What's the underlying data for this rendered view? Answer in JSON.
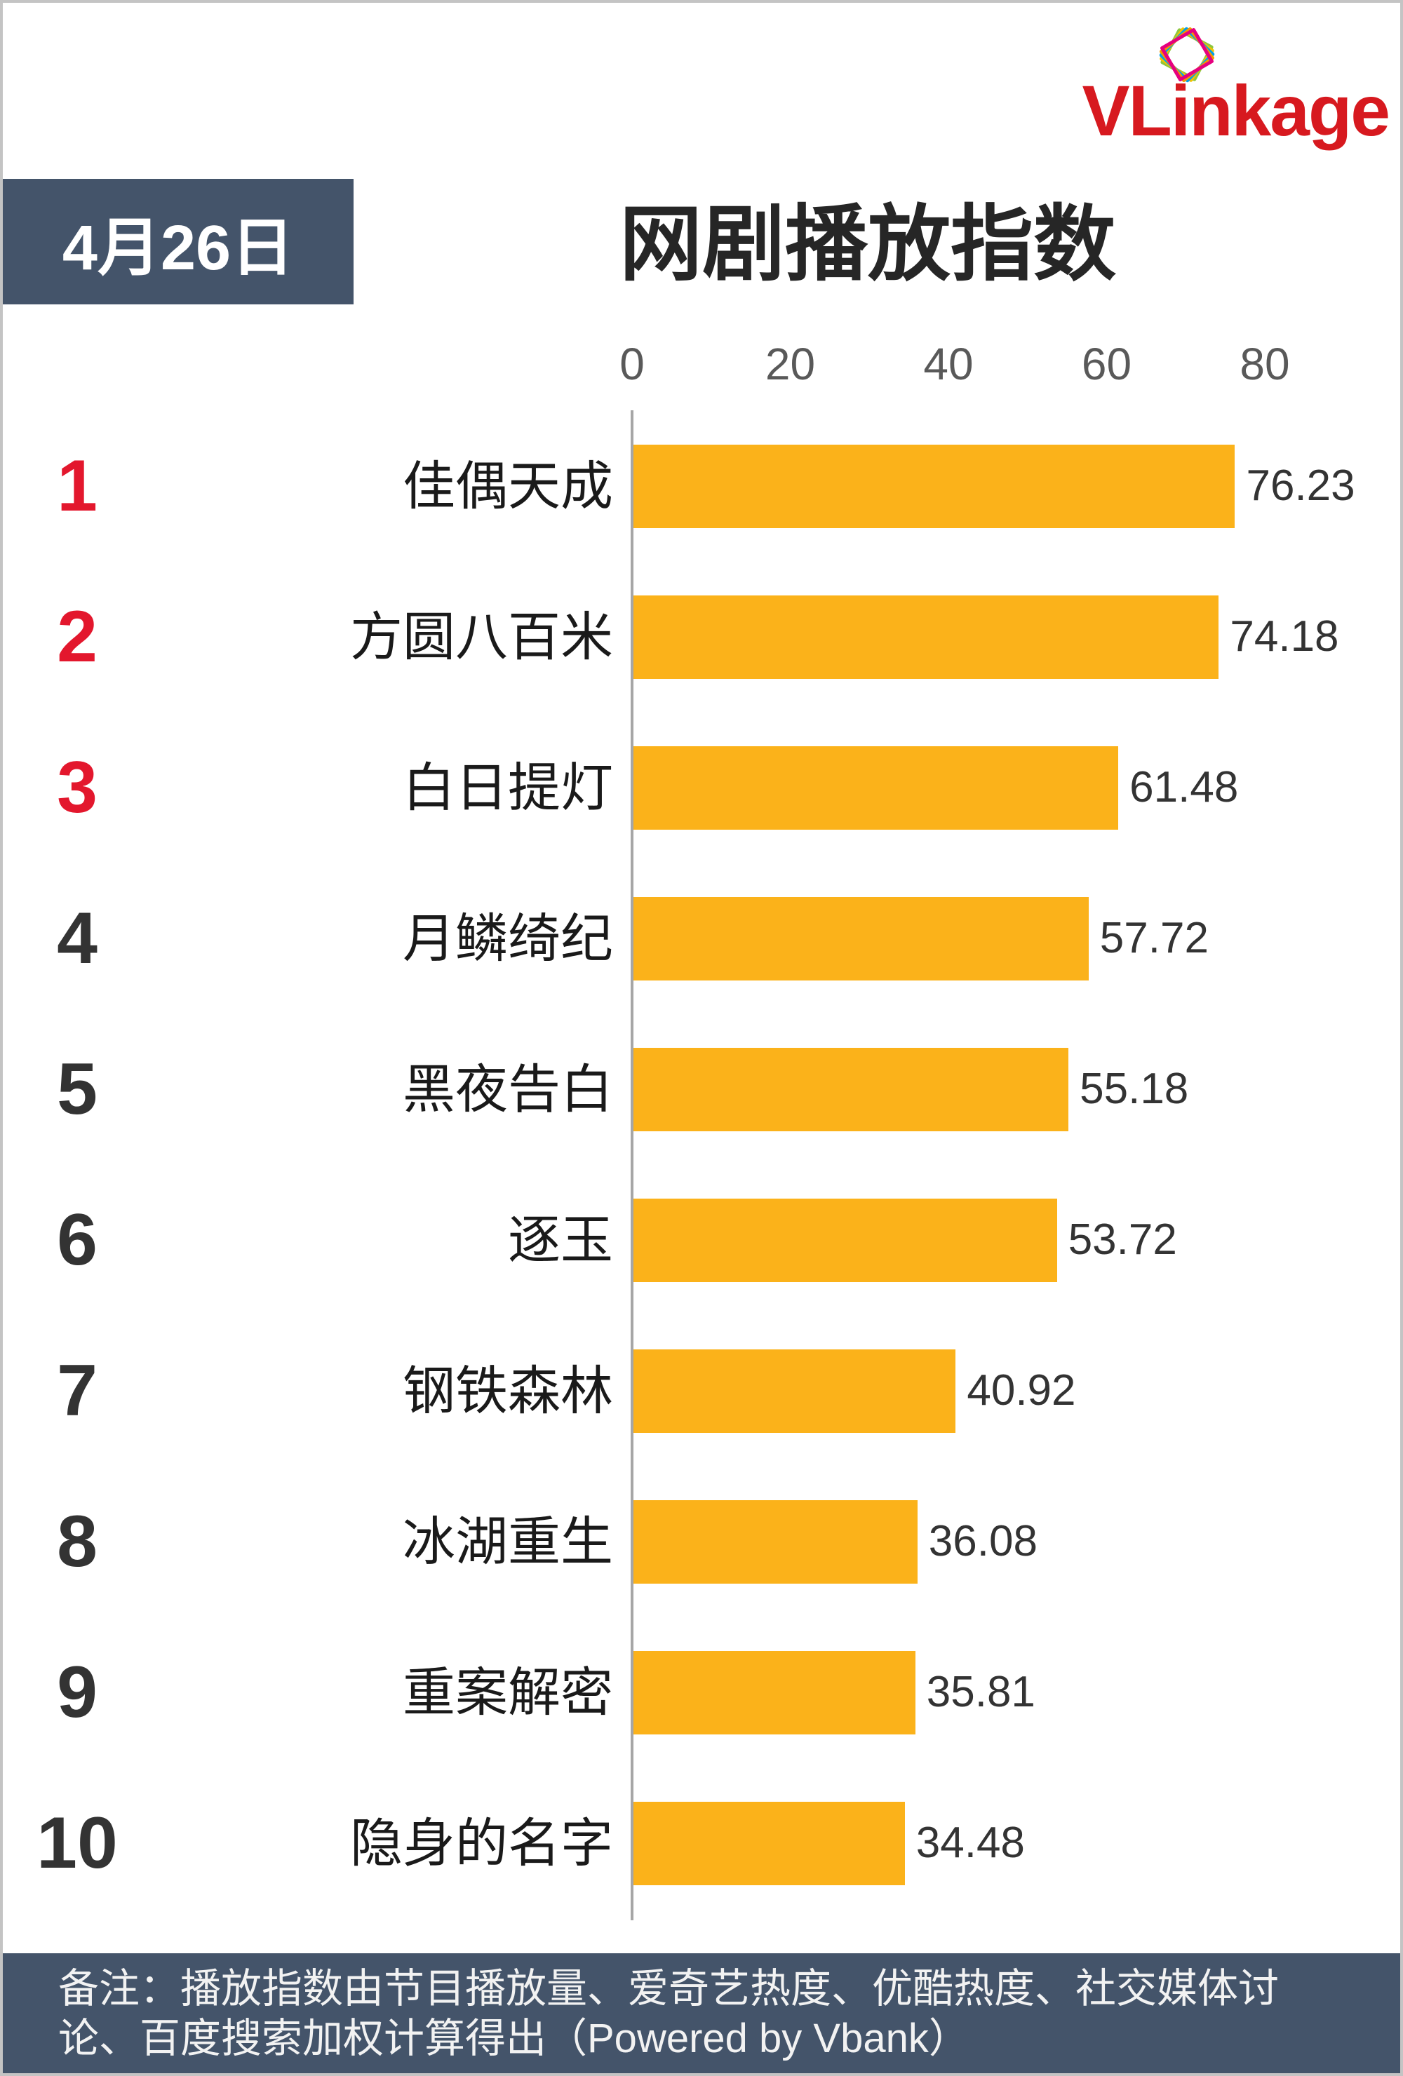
{
  "header": {
    "logo_text": "VLinkage",
    "date": "4月26日"
  },
  "colors": {
    "brand_red": "#d7191f",
    "header_box": "#44546a",
    "footer_box": "#44546a",
    "bar": "#fbb21a",
    "rank_top3": "#e3172d",
    "rank_other": "#333333",
    "logo_outlines": [
      "#8cc63f",
      "#f5c400",
      "#00a0e9",
      "#f39800",
      "#e5007f"
    ]
  },
  "chart_data": {
    "type": "bar",
    "orientation": "horizontal",
    "title": "网剧播放指数",
    "xlabel": "",
    "ylabel": "",
    "ranks": [
      "1",
      "2",
      "3",
      "4",
      "5",
      "6",
      "7",
      "8",
      "9",
      "10"
    ],
    "categories": [
      "佳偶天成",
      "方圆八百米",
      "白日提灯",
      "月鳞绮纪",
      "黑夜告白",
      "逐玉",
      "钢铁森林",
      "冰湖重生",
      "重案解密",
      "隐身的名字"
    ],
    "values": [
      76.23,
      74.18,
      61.48,
      57.72,
      55.18,
      53.72,
      40.92,
      36.08,
      35.81,
      34.48
    ],
    "xticks": [
      0,
      20,
      40,
      60,
      80
    ],
    "xlim": [
      0,
      80
    ],
    "tick_position": "top",
    "grid": false,
    "legend": "none"
  },
  "footer": {
    "lines": [
      "备注：播放指数由节目播放量、爱奇艺热度、优酷热度、社交媒体讨",
      "论、百度搜索加权计算得出（Powered by Vbank）"
    ]
  }
}
